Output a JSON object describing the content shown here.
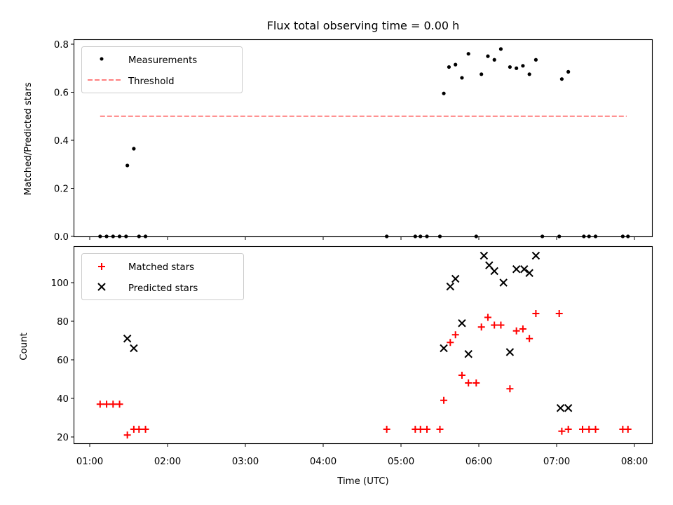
{
  "chart_data": [
    {
      "type": "scatter",
      "title": "Flux total observing time = 0.00 h",
      "ylabel": "Matched/Predicted stars",
      "xlabel": "",
      "xlim": [
        "01:00",
        "08:00"
      ],
      "ylim": [
        0,
        0.8
      ],
      "y_ticks": [
        "0.0",
        "0.2",
        "0.4",
        "0.6",
        "0.8"
      ],
      "legend_placement": "upper-left",
      "legend": [
        "Measurements",
        "Threshold"
      ],
      "colors": {
        "measurements": "#000000",
        "threshold": "#ff7f7f"
      },
      "threshold": {
        "name": "Threshold",
        "value": 0.5,
        "x_start": "01:08",
        "x_end": "07:54"
      },
      "series": [
        {
          "name": "Measurements",
          "marker": "dot",
          "x": [
            "01:08",
            "01:13",
            "01:18",
            "01:23",
            "01:28",
            "01:29",
            "01:34",
            "01:38",
            "01:43",
            "04:49",
            "05:11",
            "05:15",
            "05:20",
            "05:30",
            "05:33",
            "05:37",
            "05:42",
            "05:47",
            "05:52",
            "05:58",
            "06:02",
            "06:07",
            "06:12",
            "06:17",
            "06:24",
            "06:29",
            "06:34",
            "06:39",
            "06:44",
            "06:49",
            "07:02",
            "07:04",
            "07:09",
            "07:21",
            "07:25",
            "07:30",
            "07:51",
            "07:55"
          ],
          "y": [
            0,
            0,
            0,
            0,
            0,
            0.295,
            0.365,
            0,
            0,
            0,
            0,
            0,
            0,
            0,
            0.595,
            0.705,
            0.715,
            0.66,
            0.76,
            0,
            0.675,
            0.75,
            0.735,
            0.78,
            0.705,
            0.7,
            0.71,
            0.675,
            0.735,
            0,
            0,
            0.655,
            0.685,
            0,
            0,
            0,
            0,
            0
          ]
        }
      ]
    },
    {
      "type": "scatter",
      "title": "",
      "ylabel": "Count",
      "xlabel": "Time (UTC)",
      "xlim": [
        "01:00",
        "08:00"
      ],
      "x_ticks": [
        "01:00",
        "02:00",
        "03:00",
        "04:00",
        "05:00",
        "06:00",
        "07:00",
        "08:00"
      ],
      "y_ticks": [
        "20",
        "40",
        "60",
        "80",
        "100"
      ],
      "ylim": [
        16,
        118
      ],
      "legend_placement": "upper-left",
      "legend": [
        "Matched stars",
        "Predicted stars"
      ],
      "colors": {
        "matched": "#ff0000",
        "predicted": "#000000"
      },
      "series": [
        {
          "name": "Matched stars",
          "marker": "plus",
          "x": [
            "01:08",
            "01:13",
            "01:18",
            "01:23",
            "01:29",
            "01:34",
            "01:38",
            "01:43",
            "04:49",
            "05:11",
            "05:15",
            "05:20",
            "05:30",
            "05:33",
            "05:38",
            "05:42",
            "05:47",
            "05:52",
            "05:58",
            "06:02",
            "06:07",
            "06:12",
            "06:17",
            "06:24",
            "06:29",
            "06:34",
            "06:39",
            "06:44",
            "07:02",
            "07:04",
            "07:09",
            "07:20",
            "07:25",
            "07:30",
            "07:51",
            "07:55"
          ],
          "y": [
            37,
            37,
            37,
            37,
            21,
            24,
            24,
            24,
            24,
            24,
            24,
            24,
            24,
            39,
            69,
            73,
            52,
            48,
            48,
            77,
            82,
            78,
            78,
            45,
            75,
            76,
            71,
            84,
            84,
            23,
            24,
            24,
            24,
            24,
            24,
            24
          ]
        },
        {
          "name": "Predicted stars",
          "marker": "x",
          "x": [
            "01:29",
            "01:34",
            "05:33",
            "05:38",
            "05:42",
            "05:47",
            "05:52",
            "06:04",
            "06:08",
            "06:12",
            "06:19",
            "06:24",
            "06:29",
            "06:35",
            "06:39",
            "06:44",
            "07:03",
            "07:09"
          ],
          "y": [
            71,
            66,
            66,
            98,
            102,
            79,
            63,
            114,
            109,
            106,
            100,
            64,
            107,
            107,
            105,
            114,
            35,
            35
          ]
        }
      ]
    }
  ]
}
